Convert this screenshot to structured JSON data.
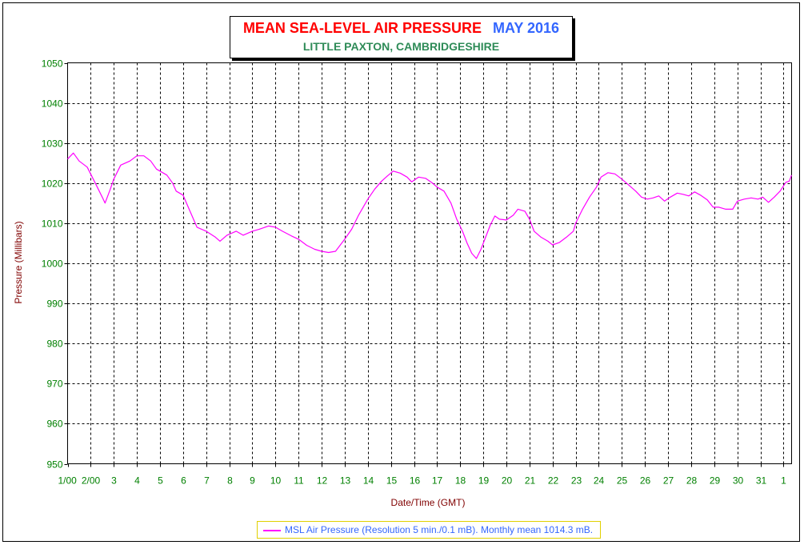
{
  "chart_data": {
    "type": "line",
    "title": "MEAN SEA-LEVEL AIR PRESSURE",
    "title_period": "MAY 2016",
    "subtitle": "LITTLE PAXTON, CAMBRIDGESHIRE",
    "xlabel": "Date/Time (GMT)",
    "ylabel": "Pressure (Millibars)",
    "ylim": [
      950,
      1050
    ],
    "yticks": [
      1050,
      1040,
      1030,
      1020,
      1010,
      1000,
      990,
      980,
      970,
      960,
      950
    ],
    "xlim": [
      1,
      32.35
    ],
    "xtick_values": [
      1,
      2,
      3,
      4,
      5,
      6,
      7,
      8,
      9,
      10,
      11,
      12,
      13,
      14,
      15,
      16,
      17,
      18,
      19,
      20,
      21,
      22,
      23,
      24,
      25,
      26,
      27,
      28,
      29,
      30,
      31,
      32
    ],
    "xtick_labels": [
      "1/00",
      "2/00",
      "3",
      "4",
      "5",
      "6",
      "7",
      "8",
      "9",
      "10",
      "11",
      "12",
      "13",
      "14",
      "15",
      "16",
      "17",
      "18",
      "19",
      "20",
      "21",
      "22",
      "23",
      "24",
      "25",
      "26",
      "27",
      "28",
      "29",
      "30",
      "31",
      "1"
    ],
    "grid": true,
    "colors": {
      "line": "#ff00ff",
      "axis_text": "#008000",
      "label_text": "#800000"
    },
    "series": [
      {
        "name": "MSL Air Pressure (Resolution 5 min./0.1 mB). Monthly mean 1014.3 mB.",
        "color": "#ff00ff",
        "points": [
          [
            1.0,
            1026.0
          ],
          [
            1.25,
            1027.5
          ],
          [
            1.5,
            1025.5
          ],
          [
            1.85,
            1024.0
          ],
          [
            2.2,
            1020.0
          ],
          [
            2.5,
            1016.5
          ],
          [
            2.62,
            1015.0
          ],
          [
            2.85,
            1018.5
          ],
          [
            3.0,
            1021.0
          ],
          [
            3.3,
            1024.5
          ],
          [
            3.7,
            1025.5
          ],
          [
            4.0,
            1026.8
          ],
          [
            4.3,
            1026.8
          ],
          [
            4.6,
            1025.5
          ],
          [
            4.85,
            1023.5
          ],
          [
            5.0,
            1023.0
          ],
          [
            5.3,
            1022.0
          ],
          [
            5.55,
            1020.0
          ],
          [
            5.7,
            1018.0
          ],
          [
            6.0,
            1017.0
          ],
          [
            6.3,
            1013.0
          ],
          [
            6.6,
            1009.0
          ],
          [
            7.0,
            1008.0
          ],
          [
            7.4,
            1006.5
          ],
          [
            7.6,
            1005.5
          ],
          [
            7.9,
            1007.0
          ],
          [
            8.3,
            1008.0
          ],
          [
            8.6,
            1007.0
          ],
          [
            9.0,
            1008.0
          ],
          [
            9.3,
            1008.5
          ],
          [
            9.7,
            1009.3
          ],
          [
            10.0,
            1009.0
          ],
          [
            10.3,
            1008.0
          ],
          [
            10.7,
            1006.8
          ],
          [
            11.0,
            1006.0
          ],
          [
            11.35,
            1004.5
          ],
          [
            11.7,
            1003.5
          ],
          [
            12.0,
            1003.0
          ],
          [
            12.3,
            1002.7
          ],
          [
            12.6,
            1003.0
          ],
          [
            12.8,
            1004.5
          ],
          [
            13.0,
            1006.0
          ],
          [
            13.3,
            1008.5
          ],
          [
            13.6,
            1012.0
          ],
          [
            14.0,
            1016.0
          ],
          [
            14.3,
            1018.5
          ],
          [
            14.6,
            1020.5
          ],
          [
            14.85,
            1021.8
          ],
          [
            15.1,
            1023.0
          ],
          [
            15.4,
            1022.5
          ],
          [
            15.7,
            1021.5
          ],
          [
            15.9,
            1020.3
          ],
          [
            16.2,
            1021.5
          ],
          [
            16.5,
            1021.2
          ],
          [
            16.8,
            1020.0
          ],
          [
            17.0,
            1019.0
          ],
          [
            17.3,
            1018.0
          ],
          [
            17.6,
            1015.0
          ],
          [
            17.85,
            1011.0
          ],
          [
            18.1,
            1008.0
          ],
          [
            18.3,
            1005.0
          ],
          [
            18.5,
            1002.5
          ],
          [
            18.7,
            1001.2
          ],
          [
            18.9,
            1003.5
          ],
          [
            19.1,
            1006.5
          ],
          [
            19.3,
            1009.5
          ],
          [
            19.5,
            1011.8
          ],
          [
            19.7,
            1011.0
          ],
          [
            20.0,
            1010.8
          ],
          [
            20.3,
            1012.0
          ],
          [
            20.5,
            1013.5
          ],
          [
            20.8,
            1013.0
          ],
          [
            21.0,
            1011.0
          ],
          [
            21.2,
            1008.0
          ],
          [
            21.5,
            1006.5
          ],
          [
            21.8,
            1005.5
          ],
          [
            22.0,
            1004.6
          ],
          [
            22.3,
            1005.2
          ],
          [
            22.6,
            1006.5
          ],
          [
            22.9,
            1008.0
          ],
          [
            23.0,
            1010.0
          ],
          [
            23.3,
            1013.5
          ],
          [
            23.6,
            1016.5
          ],
          [
            23.9,
            1019.0
          ],
          [
            24.1,
            1021.5
          ],
          [
            24.4,
            1022.6
          ],
          [
            24.7,
            1022.3
          ],
          [
            25.0,
            1021.0
          ],
          [
            25.3,
            1019.5
          ],
          [
            25.6,
            1018.0
          ],
          [
            25.85,
            1016.5
          ],
          [
            26.1,
            1016.0
          ],
          [
            26.35,
            1016.3
          ],
          [
            26.6,
            1016.8
          ],
          [
            26.85,
            1015.5
          ],
          [
            27.1,
            1016.5
          ],
          [
            27.4,
            1017.5
          ],
          [
            27.65,
            1017.2
          ],
          [
            27.9,
            1016.8
          ],
          [
            28.15,
            1017.8
          ],
          [
            28.4,
            1017.0
          ],
          [
            28.7,
            1015.8
          ],
          [
            28.95,
            1014.0
          ],
          [
            29.2,
            1014.0
          ],
          [
            29.5,
            1013.5
          ],
          [
            29.8,
            1013.5
          ],
          [
            30.0,
            1015.5
          ],
          [
            30.3,
            1016.0
          ],
          [
            30.6,
            1016.3
          ],
          [
            30.9,
            1016.0
          ],
          [
            31.1,
            1016.5
          ],
          [
            31.35,
            1015.2
          ],
          [
            31.6,
            1016.5
          ],
          [
            31.85,
            1018.0
          ],
          [
            32.1,
            1020.2
          ],
          [
            32.25,
            1020.5
          ],
          [
            32.35,
            1022.0
          ]
        ]
      }
    ]
  }
}
